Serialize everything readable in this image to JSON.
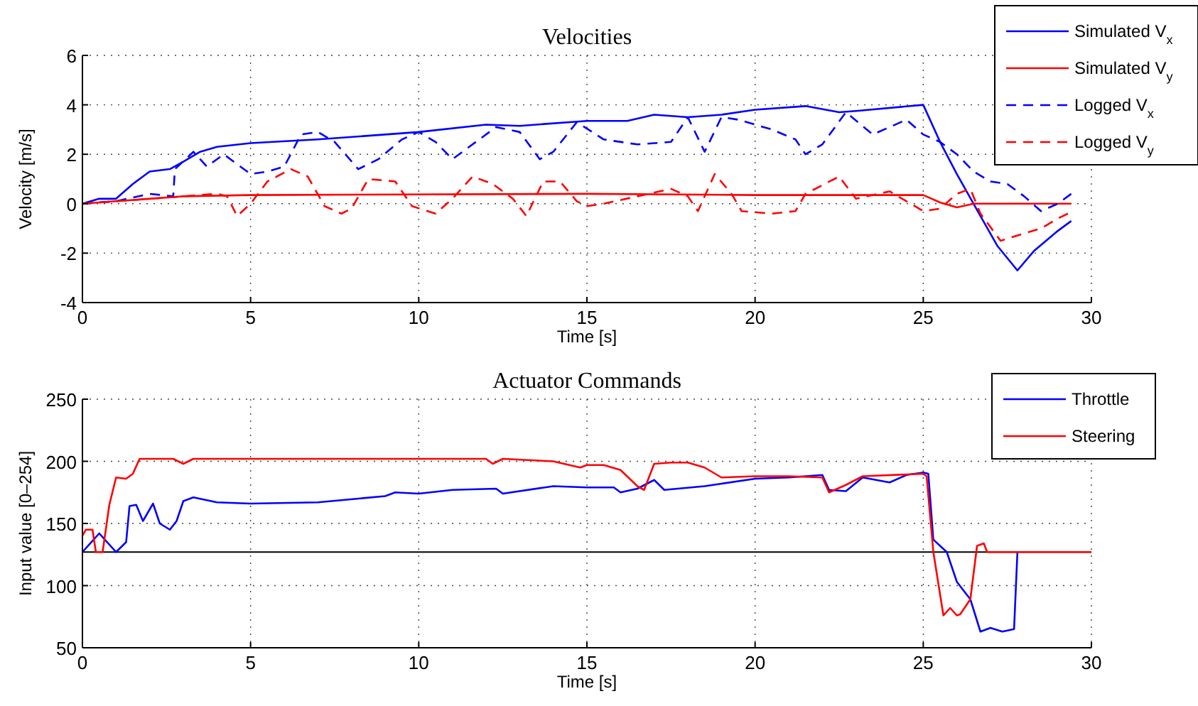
{
  "chart_data": [
    {
      "type": "line",
      "title": "Velocities",
      "xlabel": "Time [s]",
      "ylabel": "Velocity [m/s]",
      "xlim": [
        0,
        30
      ],
      "xticks": [
        0,
        5,
        10,
        15,
        20,
        25,
        30
      ],
      "ylim": [
        -4,
        6
      ],
      "yticks": [
        -4,
        -2,
        0,
        2,
        4,
        6
      ],
      "grid": true,
      "legend": "top right",
      "series": [
        {
          "name": "Simulated V$_{x}$",
          "color": "#0000ff",
          "line_style": "solid",
          "x": [
            0,
            0.5,
            1,
            1.5,
            2,
            2.6,
            3,
            3.5,
            4,
            5,
            7,
            9,
            10,
            12,
            13,
            15,
            16.2,
            17,
            18,
            19,
            20,
            21.5,
            22.5,
            23,
            25,
            25.5,
            26,
            26.7,
            27.2,
            27.8,
            28.3,
            29,
            29.4
          ],
          "values": [
            0,
            0.2,
            0.2,
            0.8,
            1.3,
            1.4,
            1.7,
            2.1,
            2.3,
            2.45,
            2.6,
            2.8,
            2.9,
            3.2,
            3.15,
            3.35,
            3.35,
            3.6,
            3.5,
            3.6,
            3.8,
            3.95,
            3.7,
            3.75,
            4.0,
            2.5,
            1.2,
            -0.5,
            -1.7,
            -2.7,
            -1.9,
            -1.1,
            -0.7
          ]
        },
        {
          "name": "Simulated V$_{y}$",
          "color": "#ff0000",
          "line_style": "solid",
          "x": [
            0,
            1,
            2,
            3,
            5,
            15,
            20,
            25,
            25.5,
            26,
            26.5,
            29.4
          ],
          "values": [
            0,
            0.1,
            0.2,
            0.3,
            0.35,
            0.4,
            0.35,
            0.35,
            0.05,
            -0.15,
            0,
            0
          ]
        },
        {
          "name": "Logged V$_{x}$",
          "color": "#0000ff",
          "line_style": "dashed",
          "x": [
            0,
            1,
            2,
            2.7,
            2.75,
            3.3,
            3.7,
            4.2,
            5,
            5.5,
            6,
            6.5,
            7,
            7.5,
            8.2,
            8.8,
            9.5,
            10,
            10.5,
            11,
            11.5,
            12.3,
            13,
            13.6,
            14,
            14.7,
            15.5,
            16.5,
            17.5,
            18,
            18.5,
            19,
            19.5,
            20.5,
            21.2,
            21.5,
            22,
            22.7,
            23.5,
            24.5,
            25,
            25.5,
            26,
            26.5,
            27,
            27.5,
            28,
            28.5,
            29,
            29.4
          ],
          "values": [
            0,
            0.1,
            0.4,
            0.3,
            1.4,
            2.1,
            1.5,
            2.0,
            1.2,
            1.3,
            1.5,
            2.8,
            2.9,
            2.5,
            1.4,
            1.8,
            2.6,
            2.9,
            2.5,
            1.8,
            2.3,
            3.1,
            2.9,
            1.8,
            2.1,
            3.3,
            2.6,
            2.4,
            2.5,
            3.5,
            2.1,
            3.5,
            3.4,
            3.0,
            2.6,
            2.0,
            2.4,
            3.7,
            2.8,
            3.4,
            2.8,
            2.5,
            2.0,
            1.3,
            0.9,
            0.8,
            0.3,
            -0.3,
            0,
            0.4
          ]
        },
        {
          "name": "Logged V$_{y}$",
          "color": "#ff0000",
          "line_style": "dashed",
          "x": [
            0,
            2,
            3,
            4,
            4.3,
            4.6,
            5,
            5.5,
            6.2,
            6.7,
            7.2,
            7.7,
            8,
            8.5,
            9.3,
            9.8,
            10.5,
            11,
            11.6,
            12.2,
            12.8,
            13.2,
            13.7,
            14.2,
            14.7,
            15,
            15.5,
            16.5,
            17.5,
            18,
            18.3,
            18.8,
            19.3,
            19.6,
            20.5,
            21.2,
            21.5,
            22.5,
            23,
            24,
            25,
            25.5,
            26,
            26.4,
            26.7,
            27.3,
            28,
            28.5,
            29,
            29.3
          ],
          "values": [
            0,
            0.2,
            0.3,
            0.4,
            0.3,
            -0.5,
            0,
            0.9,
            1.4,
            1.1,
            -0.1,
            -0.4,
            -0.2,
            1.0,
            0.9,
            -0.1,
            -0.4,
            0.2,
            1.1,
            0.8,
            0.2,
            -0.5,
            0.9,
            0.9,
            0.1,
            -0.1,
            0,
            0.3,
            0.6,
            0.3,
            -0.3,
            1.2,
            0.4,
            -0.3,
            -0.4,
            -0.3,
            0.4,
            1.1,
            0.2,
            0.5,
            -0.3,
            -0.2,
            0.4,
            0.6,
            -0.4,
            -1.5,
            -1.2,
            -1.0,
            -0.6,
            -0.4
          ]
        }
      ]
    },
    {
      "type": "line",
      "title": "Actuator Commands",
      "xlabel": "Time [s]",
      "ylabel": "Input value [0–254]",
      "xlim": [
        0,
        30
      ],
      "xticks": [
        0,
        5,
        10,
        15,
        20,
        25,
        30
      ],
      "ylim": [
        50,
        250
      ],
      "yticks": [
        50,
        100,
        150,
        200,
        250
      ],
      "grid": true,
      "legend": "top right",
      "ref_lines": [
        {
          "axis": "y",
          "value": 127,
          "color": "#000000"
        }
      ],
      "series": [
        {
          "name": "Throttle",
          "color": "#0000ff",
          "x": [
            0,
            0.5,
            1,
            1.3,
            1.4,
            1.6,
            1.8,
            2.1,
            2.3,
            2.6,
            2.8,
            3,
            3.3,
            4,
            5,
            7,
            9,
            9.3,
            10,
            11,
            12.3,
            12.5,
            14,
            15,
            15.8,
            16,
            16.5,
            17,
            17.3,
            18.5,
            19,
            20,
            21,
            22,
            22.2,
            22.7,
            23.2,
            24,
            24.5,
            25,
            25.15,
            25.3,
            25.7,
            26,
            26.4,
            26.7,
            27,
            27.35,
            27.7,
            27.8
          ],
          "values": [
            127,
            142,
            127,
            135,
            164,
            165,
            152,
            166,
            150,
            145,
            152,
            168,
            171,
            167,
            166,
            167,
            172,
            175,
            174,
            177,
            178,
            174,
            180,
            179,
            179,
            175,
            178,
            185,
            177,
            180,
            182,
            186,
            187,
            189,
            177,
            176,
            187,
            183,
            189,
            191,
            190,
            137,
            127,
            103,
            89,
            63,
            66,
            63,
            65,
            127
          ]
        },
        {
          "name": "Steering",
          "color": "#ff0000",
          "x": [
            0,
            0.1,
            0.3,
            0.4,
            0.6,
            0.8,
            1,
            1.3,
            1.5,
            1.7,
            2.7,
            3,
            3.3,
            12,
            12.2,
            12.5,
            14,
            14.8,
            15,
            15.5,
            16,
            16.5,
            16.7,
            17,
            17.5,
            18,
            18.5,
            19,
            20,
            21,
            22,
            22.2,
            22.7,
            23.2,
            25,
            25.1,
            25.3,
            25.6,
            25.8,
            26,
            26.1,
            26.4,
            26.6,
            26.8,
            26.9,
            30
          ],
          "values": [
            140,
            145,
            145,
            127,
            127,
            165,
            187,
            186,
            190,
            202,
            202,
            198,
            202,
            202,
            198,
            202,
            200,
            195,
            197,
            197,
            193,
            180,
            177,
            198,
            199,
            199,
            195,
            187,
            188,
            188,
            187,
            175,
            181,
            188,
            190,
            188,
            127,
            76,
            82,
            76,
            77,
            89,
            132,
            134,
            127,
            127
          ]
        }
      ]
    }
  ]
}
